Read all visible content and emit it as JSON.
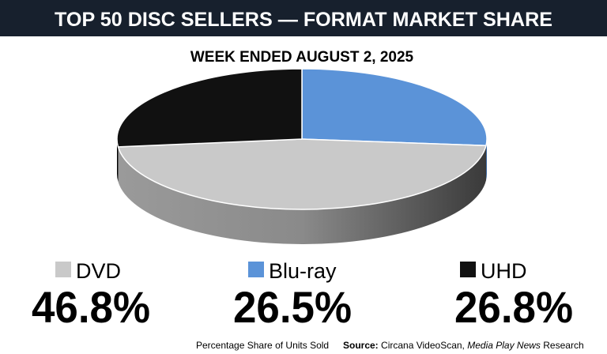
{
  "chart_data": {
    "type": "pie3d",
    "title": "TOP 50 DISC SELLERS — FORMAT MARKET SHARE",
    "subtitle": "WEEK ENDED AUGUST 2, 2025",
    "categories": [
      "DVD",
      "Blu-ray",
      "UHD"
    ],
    "values": [
      46.8,
      26.5,
      26.8
    ],
    "value_labels": [
      "46.8%",
      "26.5%",
      "26.8%"
    ],
    "colors": [
      "#c9c9c9",
      "#5b93d8",
      "#111111"
    ],
    "footnote": "Percentage Share of Units Sold",
    "source_label": "Source:",
    "source": "Circana VideoScan,",
    "source_publication": "Media Play News",
    "source_suffix": "Research"
  }
}
